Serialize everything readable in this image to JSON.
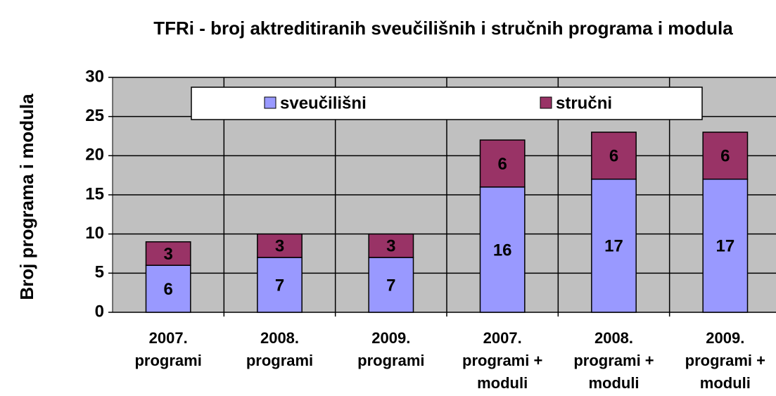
{
  "chart_data": {
    "type": "bar",
    "stacked": true,
    "title": "TFRi - broj aktreditiranih sveučilišnih i stručnih programa i modula",
    "ylabel": "Broj programa i modula",
    "categories": [
      [
        "2007.",
        "programi"
      ],
      [
        "2008.",
        "programi"
      ],
      [
        "2009.",
        "programi"
      ],
      [
        "2007.",
        "programi +",
        "moduli"
      ],
      [
        "2008.",
        "programi +",
        "moduli"
      ],
      [
        "2009.",
        "programi +",
        "moduli"
      ]
    ],
    "series": [
      {
        "name": "sveučilišni",
        "color": "#9999ff",
        "values": [
          6,
          7,
          7,
          16,
          17,
          17
        ]
      },
      {
        "name": "stručni",
        "color": "#993366",
        "values": [
          3,
          3,
          3,
          6,
          6,
          6
        ]
      }
    ],
    "ylim": [
      0,
      30
    ],
    "yticks": [
      0,
      5,
      10,
      15,
      20,
      25,
      30
    ],
    "grid": true,
    "legend": "top"
  }
}
